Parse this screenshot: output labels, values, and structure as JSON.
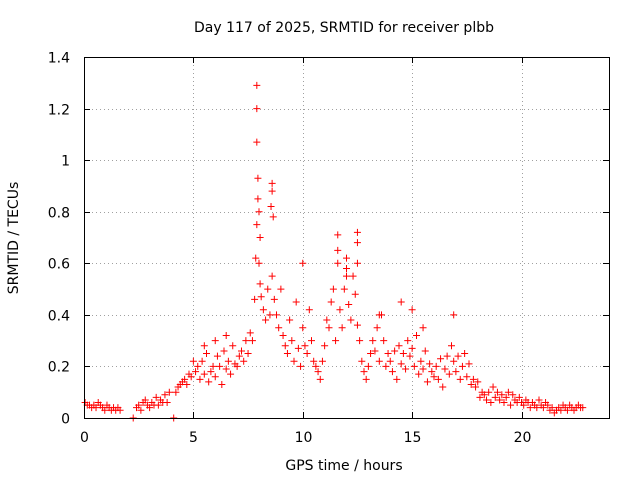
{
  "chart_data": {
    "type": "scatter",
    "title": "Day 117 of 2025, SRMTID for receiver plbb",
    "xlabel": "GPS time / hours",
    "ylabel": "SRMTID / TECUs",
    "xlim": [
      0,
      24
    ],
    "ylim": [
      0,
      1.4
    ],
    "xticks": [
      0,
      5,
      10,
      15,
      20
    ],
    "xtick_labels": [
      "0",
      "5",
      "10",
      "15",
      "20"
    ],
    "yticks": [
      0,
      0.2,
      0.4,
      0.6,
      0.8,
      1.0,
      1.2,
      1.4
    ],
    "ytick_labels": [
      "0",
      "0.2",
      "0.4",
      "0.6",
      "0.8",
      "1",
      "1.2",
      "1.4"
    ],
    "grid": true,
    "marker": "+",
    "color": "#ff0000",
    "series": [
      {
        "name": "SRMTID",
        "x": [
          0.05,
          0.15,
          0.25,
          0.35,
          0.45,
          0.55,
          0.65,
          0.75,
          0.85,
          0.95,
          1.05,
          1.15,
          1.25,
          1.35,
          1.45,
          1.55,
          1.65,
          2.25,
          2.4,
          2.5,
          2.6,
          2.7,
          2.8,
          2.9,
          3.0,
          3.1,
          3.2,
          3.3,
          3.4,
          3.5,
          3.6,
          3.7,
          3.8,
          3.9,
          4.1,
          4.2,
          4.3,
          4.4,
          4.5,
          4.6,
          4.7,
          4.8,
          4.9,
          5.0,
          5.1,
          5.2,
          5.3,
          5.4,
          5.5,
          5.6,
          5.7,
          5.8,
          5.9,
          6.0,
          6.1,
          6.2,
          6.3,
          6.4,
          6.5,
          6.6,
          6.7,
          6.8,
          6.9,
          7.0,
          7.1,
          7.2,
          7.3,
          7.4,
          7.5,
          7.6,
          7.7,
          7.8,
          7.85,
          7.9,
          7.95,
          8.0,
          8.05,
          8.1,
          8.2,
          8.3,
          8.4,
          8.5,
          8.55,
          8.6,
          8.65,
          8.7,
          8.8,
          8.9,
          9.0,
          9.1,
          9.2,
          9.3,
          9.4,
          9.5,
          9.6,
          9.7,
          9.8,
          9.9,
          10.0,
          10.1,
          10.2,
          10.3,
          10.4,
          10.5,
          10.6,
          10.7,
          10.8,
          10.9,
          11.0,
          11.1,
          11.2,
          11.3,
          11.4,
          11.5,
          11.6,
          11.7,
          11.8,
          11.9,
          12.0,
          12.1,
          12.2,
          12.3,
          12.4,
          12.5,
          12.6,
          12.7,
          12.8,
          12.9,
          13.0,
          13.1,
          13.2,
          13.3,
          13.4,
          13.5,
          13.6,
          13.7,
          13.8,
          13.9,
          14.0,
          14.1,
          14.2,
          14.3,
          14.4,
          14.5,
          14.6,
          14.7,
          14.8,
          14.9,
          15.0,
          15.1,
          15.2,
          15.3,
          15.4,
          15.5,
          15.6,
          15.7,
          15.8,
          15.9,
          16.0,
          16.1,
          16.2,
          16.3,
          16.4,
          16.5,
          16.6,
          16.7,
          16.8,
          16.9,
          17.0,
          17.1,
          17.2,
          17.3,
          17.4,
          17.5,
          17.6,
          17.7,
          17.8,
          17.9,
          18.0,
          18.1,
          18.2,
          18.3,
          18.4,
          18.5,
          18.6,
          18.7,
          18.8,
          18.9,
          19.0,
          19.1,
          19.2,
          19.3,
          19.4,
          19.5,
          19.6,
          19.7,
          19.8,
          19.9,
          20.0,
          20.1,
          20.2,
          20.3,
          20.4,
          20.5,
          20.6,
          20.7,
          20.8,
          20.9,
          21.0,
          21.1,
          21.2,
          21.3,
          21.4,
          21.5,
          21.6,
          21.7,
          21.8,
          21.9,
          22.0,
          22.1,
          22.2,
          22.3,
          22.4,
          22.5,
          22.6,
          22.7,
          22.8,
          7.9,
          7.9,
          7.9,
          7.95,
          8.6,
          8.6,
          8.0,
          8.05,
          10.0,
          11.6,
          11.6,
          12.0,
          12.0,
          12.5,
          12.5,
          12.5,
          16.9,
          14.5,
          15.0,
          15.5,
          13.5,
          6.5,
          6.0,
          5.5
        ],
        "y": [
          0.06,
          0.05,
          0.05,
          0.04,
          0.05,
          0.04,
          0.06,
          0.05,
          0.04,
          0.03,
          0.05,
          0.04,
          0.03,
          0.04,
          0.03,
          0.04,
          0.03,
          0.0,
          0.04,
          0.05,
          0.03,
          0.06,
          0.07,
          0.05,
          0.04,
          0.06,
          0.05,
          0.08,
          0.05,
          0.07,
          0.06,
          0.09,
          0.06,
          0.1,
          0.0,
          0.1,
          0.12,
          0.13,
          0.14,
          0.15,
          0.13,
          0.17,
          0.16,
          0.22,
          0.18,
          0.2,
          0.15,
          0.22,
          0.17,
          0.25,
          0.14,
          0.18,
          0.2,
          0.16,
          0.24,
          0.2,
          0.13,
          0.26,
          0.19,
          0.22,
          0.17,
          0.28,
          0.21,
          0.2,
          0.24,
          0.26,
          0.22,
          0.3,
          0.25,
          0.33,
          0.3,
          0.46,
          0.62,
          0.75,
          0.85,
          0.6,
          0.52,
          0.47,
          0.42,
          0.38,
          0.5,
          0.4,
          0.82,
          0.55,
          0.78,
          0.46,
          0.4,
          0.35,
          0.5,
          0.32,
          0.28,
          0.25,
          0.38,
          0.3,
          0.22,
          0.45,
          0.27,
          0.2,
          0.35,
          0.28,
          0.25,
          0.42,
          0.3,
          0.22,
          0.2,
          0.18,
          0.15,
          0.22,
          0.28,
          0.38,
          0.35,
          0.45,
          0.5,
          0.3,
          0.6,
          0.42,
          0.35,
          0.5,
          0.58,
          0.44,
          0.38,
          0.55,
          0.48,
          0.36,
          0.3,
          0.22,
          0.18,
          0.15,
          0.2,
          0.25,
          0.3,
          0.26,
          0.35,
          0.22,
          0.4,
          0.3,
          0.2,
          0.25,
          0.22,
          0.18,
          0.26,
          0.15,
          0.28,
          0.21,
          0.25,
          0.19,
          0.3,
          0.24,
          0.27,
          0.2,
          0.32,
          0.17,
          0.22,
          0.19,
          0.26,
          0.14,
          0.21,
          0.18,
          0.16,
          0.2,
          0.15,
          0.23,
          0.12,
          0.19,
          0.24,
          0.17,
          0.28,
          0.22,
          0.18,
          0.24,
          0.15,
          0.2,
          0.25,
          0.16,
          0.21,
          0.13,
          0.15,
          0.12,
          0.14,
          0.08,
          0.1,
          0.09,
          0.07,
          0.1,
          0.06,
          0.12,
          0.08,
          0.1,
          0.07,
          0.09,
          0.06,
          0.08,
          0.1,
          0.05,
          0.09,
          0.07,
          0.06,
          0.08,
          0.06,
          0.05,
          0.07,
          0.06,
          0.04,
          0.06,
          0.05,
          0.04,
          0.07,
          0.05,
          0.04,
          0.06,
          0.05,
          0.03,
          0.04,
          0.02,
          0.03,
          0.04,
          0.03,
          0.05,
          0.04,
          0.03,
          0.05,
          0.04,
          0.03,
          0.04,
          0.05,
          0.04,
          0.04,
          1.29,
          1.2,
          1.07,
          0.93,
          0.91,
          0.88,
          0.8,
          0.7,
          0.6,
          0.71,
          0.65,
          0.62,
          0.55,
          0.72,
          0.68,
          0.6,
          0.4,
          0.45,
          0.42,
          0.35,
          0.4,
          0.32,
          0.3,
          0.28
        ]
      }
    ]
  }
}
